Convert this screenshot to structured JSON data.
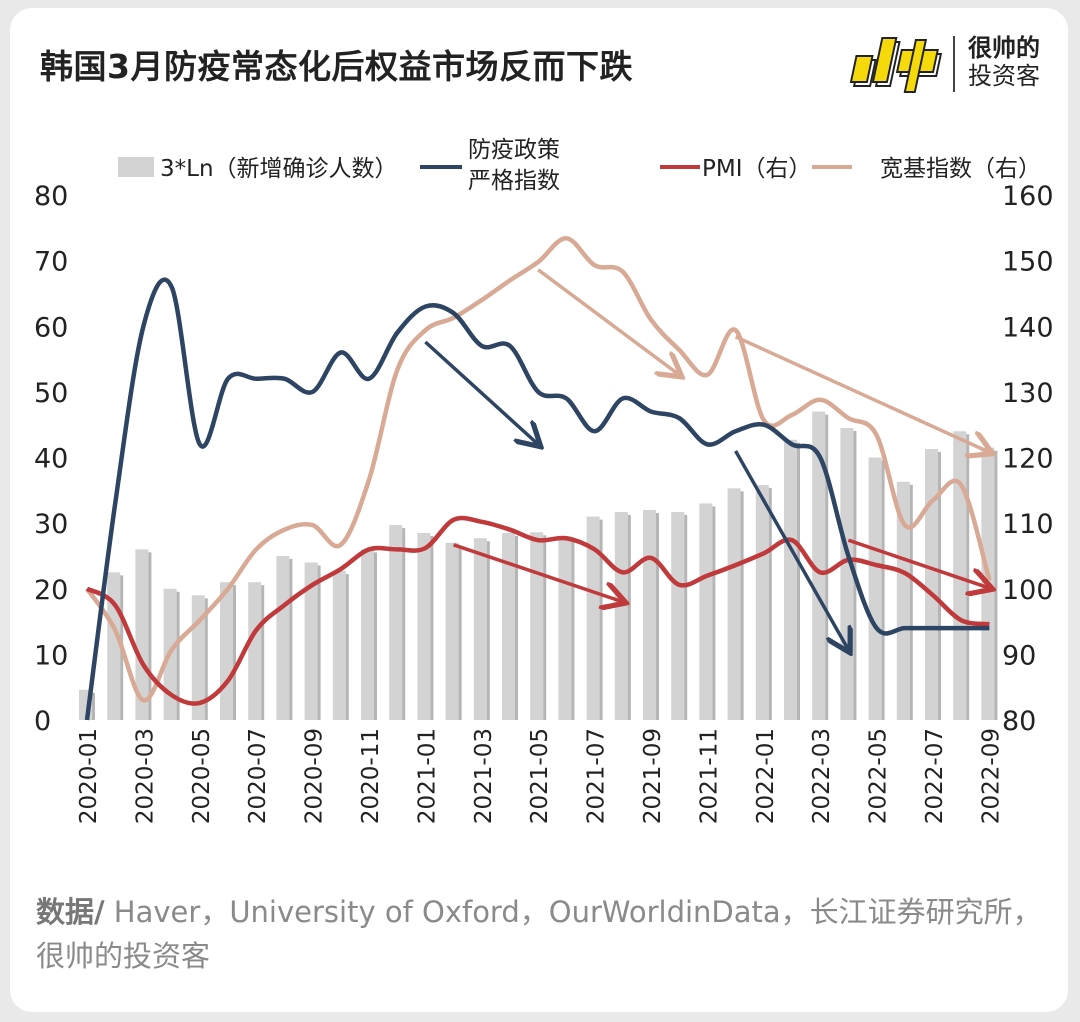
{
  "title": "韩国3月防疫常态化后权益市场反而下跌",
  "logo": {
    "line1": "很帅的",
    "line2": "投资客",
    "mark": "帅"
  },
  "source": {
    "label": "数据/",
    "text": " Haver，University of Oxford，OurWorldinData，长江证券研究所，很帅的投资客"
  },
  "colors": {
    "bars": "#d3d3d3",
    "stringency": "#2e4463",
    "pmi": "#c0393b",
    "broad": "#d8a994"
  },
  "chart_data": {
    "type": "bar+line",
    "categories": [
      "2020-01",
      "2020-02",
      "2020-03",
      "2020-04",
      "2020-05",
      "2020-06",
      "2020-07",
      "2020-08",
      "2020-09",
      "2020-10",
      "2020-11",
      "2020-12",
      "2021-01",
      "2021-02",
      "2021-03",
      "2021-04",
      "2021-05",
      "2021-06",
      "2021-07",
      "2021-08",
      "2021-09",
      "2021-10",
      "2021-11",
      "2021-12",
      "2022-01",
      "2022-02",
      "2022-03",
      "2022-04",
      "2022-05",
      "2022-06",
      "2022-07",
      "2022-08",
      "2022-09"
    ],
    "xtick_labels": [
      "2020-01",
      "2020-03",
      "2020-05",
      "2020-07",
      "2020-09",
      "2020-11",
      "2021-01",
      "2021-03",
      "2021-05",
      "2021-07",
      "2021-09",
      "2021-11",
      "2022-01",
      "2022-03",
      "2022-05",
      "2022-07",
      "2022-09"
    ],
    "y_left": {
      "range": [
        0,
        80
      ],
      "ticks": [
        "0",
        "10",
        "20",
        "30",
        "40",
        "50",
        "60",
        "70",
        "80"
      ]
    },
    "y_right": {
      "range": [
        80,
        160
      ],
      "ticks": [
        "80",
        "90",
        "100",
        "110",
        "120",
        "130",
        "140",
        "150",
        "160"
      ]
    },
    "grid": false,
    "legend_position": "top",
    "series": [
      {
        "name": "3*Ln（新增确诊人数）",
        "type": "bar",
        "axis": "left",
        "values": [
          4.6,
          22.5,
          26,
          20,
          19,
          21,
          21,
          25,
          24,
          22.7,
          26,
          29.7,
          28.5,
          27,
          27.7,
          28.5,
          28.6,
          28,
          31,
          31.7,
          32,
          31.7,
          33,
          35.3,
          35.8,
          42.7,
          47,
          44.5,
          40,
          36.3,
          41.3,
          44,
          41.5
        ]
      },
      {
        "name": "防疫政策严格指数",
        "legend_lines": [
          "防疫政策",
          "严格指数"
        ],
        "type": "line",
        "axis": "left",
        "values": [
          0,
          33,
          60,
          66,
          42,
          52,
          52,
          52,
          50,
          56,
          52,
          59,
          63,
          62,
          57,
          57,
          50,
          49,
          44,
          49,
          47,
          46,
          42,
          44,
          45,
          42,
          40,
          25,
          14,
          14,
          14,
          14,
          14
        ]
      },
      {
        "name": "PMI（右）",
        "type": "line",
        "axis": "right",
        "values": [
          100,
          97.5,
          88.4,
          83.8,
          82.6,
          86,
          93.7,
          97.5,
          100.6,
          103,
          106,
          106,
          106.2,
          110.5,
          110.2,
          109,
          107.4,
          107.7,
          106,
          102.5,
          104.7,
          100.6,
          102,
          103.6,
          105.4,
          107.4,
          102.5,
          104.4,
          103.6,
          102.4,
          99,
          95.2,
          94.6
        ]
      },
      {
        "name": "宽基指数（右）",
        "type": "line",
        "axis": "right",
        "values": [
          100,
          93.7,
          83,
          90.7,
          95.2,
          100,
          106,
          109,
          109.7,
          106.7,
          116.6,
          133.3,
          139.4,
          141.3,
          144,
          147,
          149.8,
          153.4,
          149.3,
          148.3,
          141,
          136.4,
          132.6,
          139.4,
          125.7,
          126.5,
          128.8,
          126,
          123.4,
          109.7,
          113.5,
          115.8,
          101.3
        ]
      }
    ],
    "arrows": [
      {
        "series": "防疫政策严格指数",
        "axis": "left",
        "from": [
          "2021-01",
          57.6
        ],
        "to": [
          "2021-05",
          42
        ]
      },
      {
        "series": "防疫政策严格指数",
        "axis": "left",
        "from": [
          "2021-12",
          41
        ],
        "to": [
          "2022-04",
          10.7
        ]
      },
      {
        "series": "PMI（右）",
        "axis": "right",
        "from": [
          "2021-02",
          106.7
        ],
        "to": [
          "2021-08",
          98
        ]
      },
      {
        "series": "PMI（右）",
        "axis": "right",
        "from": [
          "2022-04",
          107.4
        ],
        "to": [
          "2022-09",
          100.1
        ]
      },
      {
        "series": "宽基指数（右）",
        "axis": "right",
        "from": [
          "2021-05",
          148.6
        ],
        "to": [
          "2021-10",
          132.6
        ]
      },
      {
        "series": "宽基指数（右）",
        "axis": "right",
        "from": [
          "2021-12",
          138.4
        ],
        "to": [
          "2022-09",
          120.8
        ]
      }
    ]
  }
}
